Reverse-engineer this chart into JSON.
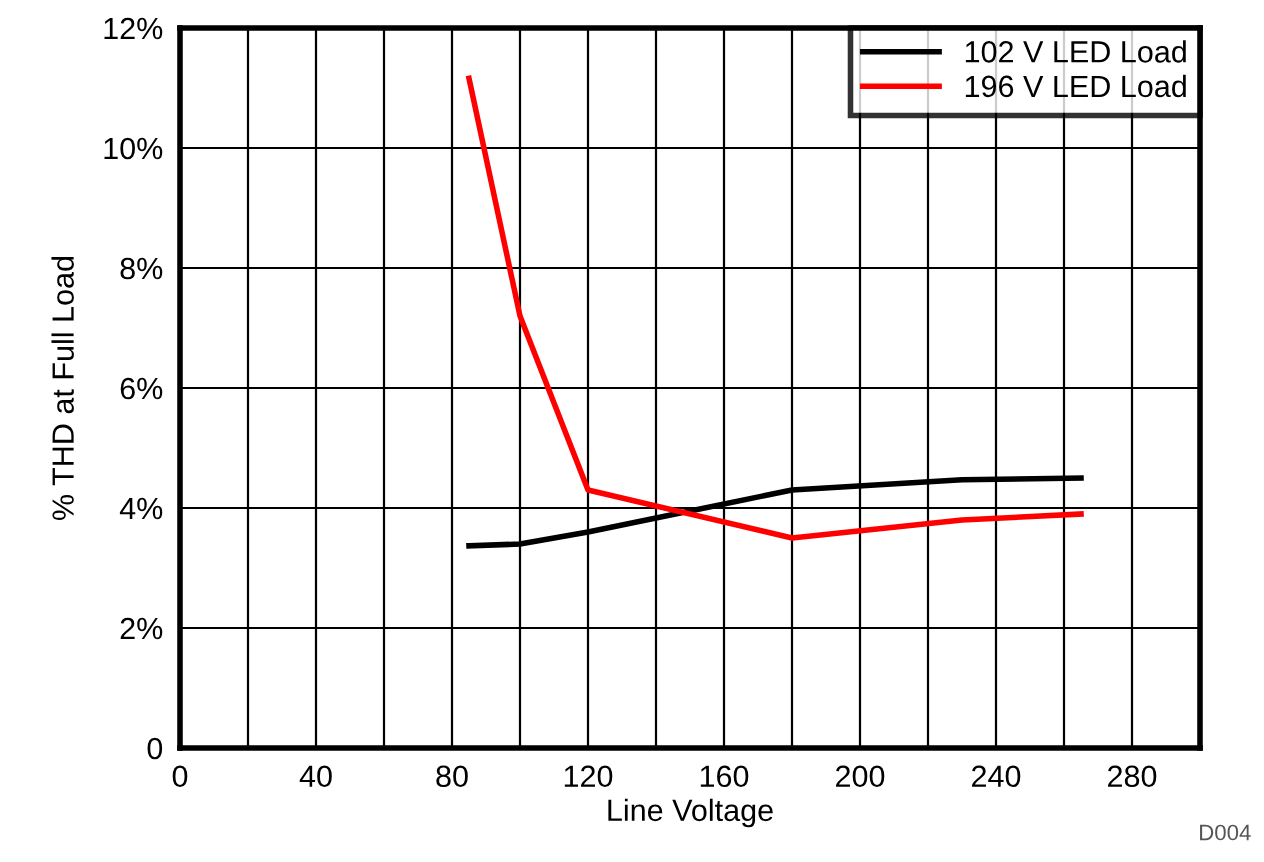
{
  "chart_data": {
    "type": "line",
    "xlabel": "Line Voltage",
    "ylabel": "% THD at Full Load",
    "xlim": [
      0,
      300
    ],
    "xticks": [
      0,
      {
        "value": 20,
        "label": null
      },
      40,
      {
        "value": 60,
        "label": null
      },
      80,
      {
        "value": 100,
        "label": null
      },
      120,
      {
        "value": 140,
        "label": null
      },
      160,
      {
        "value": 180,
        "label": null
      },
      200,
      {
        "value": 220,
        "label": null
      },
      240,
      {
        "value": 260,
        "label": null
      },
      280,
      {
        "value": 300,
        "label": null
      }
    ],
    "ylim": [
      0,
      12
    ],
    "yticks": [
      0,
      {
        "value": 2,
        "label": "2%"
      },
      {
        "value": 4,
        "label": "4%"
      },
      {
        "value": 6,
        "label": "6%"
      },
      {
        "value": 8,
        "label": "8%"
      },
      {
        "value": 10,
        "label": "10%"
      },
      {
        "value": 12,
        "label": "12%"
      }
    ],
    "grid": true,
    "legend": "top right",
    "marker": "none",
    "line_style": "solid",
    "x": [
      85,
      100,
      120,
      180,
      230,
      265
    ],
    "series": [
      {
        "name": "102 V LED Load",
        "color": "#000000",
        "values": [
          3.37,
          3.4,
          3.6,
          4.3,
          4.47,
          4.5
        ]
      },
      {
        "name": "196 V LED Load",
        "color": "#ff0000",
        "values": [
          11.16,
          7.2,
          4.3,
          3.5,
          3.8,
          3.9
        ]
      }
    ],
    "annotations": [
      "D004"
    ]
  }
}
